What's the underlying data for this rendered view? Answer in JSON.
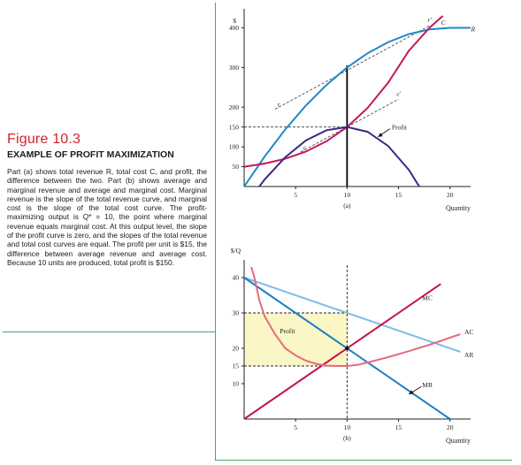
{
  "figure": {
    "label": "Figure 10.3",
    "title": "EXAMPLE OF PROFIT MAXIMIZATION",
    "body": "Part (a) shows total revenue R, total cost C, and profit, the difference between the two. Part (b) shows average and marginal revenue and average and marginal cost. Marginal revenue is the slope of the total revenue curve, and marginal cost is the slope of the total cost curve. The profit-maximizing output is Q* = 10, the point where marginal revenue equals marginal cost. At this output level, the slope of the profit curve is zero, and the slopes of the total revenue and total cost curves are equal. The profit per unit is $15, the difference between average revenue and average cost. Because 10 units are produced, total profit is $150."
  },
  "colors": {
    "revenue": "#1f87c9",
    "cost": "#c2185b",
    "profit": "#3a2a85",
    "average_revenue": "#7cbde6",
    "marginal_revenue": "#1a7fc1",
    "average_cost": "#e56b7f",
    "marginal_cost": "#c4124d",
    "profit_area": "#fbf6c5",
    "rule": "#4aa56a"
  },
  "chart_data": [
    {
      "type": "line",
      "panel_label": "(a)",
      "ylabel": "$",
      "xlabel": "Quantity",
      "xlim": [
        0,
        22
      ],
      "ylim": [
        0,
        430
      ],
      "x_ticks": [
        5,
        10,
        15,
        20
      ],
      "y_ticks": [
        50,
        100,
        150,
        200,
        300,
        400
      ],
      "series": [
        {
          "name": "R",
          "color_key": "revenue",
          "points": [
            [
              0,
              0
            ],
            [
              2,
              76
            ],
            [
              4,
              144
            ],
            [
              6,
              204
            ],
            [
              8,
              256
            ],
            [
              10,
              300
            ],
            [
              12,
              336
            ],
            [
              14,
              364
            ],
            [
              16,
              384
            ],
            [
              18,
              396
            ],
            [
              20,
              400
            ],
            [
              22,
              400
            ]
          ]
        },
        {
          "name": "C",
          "color_key": "cost",
          "points": [
            [
              0,
              50
            ],
            [
              2,
              58
            ],
            [
              4,
              70
            ],
            [
              6,
              88
            ],
            [
              8,
              114
            ],
            [
              10,
              150
            ],
            [
              12,
              198
            ],
            [
              14,
              262
            ],
            [
              16,
              342
            ],
            [
              18,
              400
            ],
            [
              19.3,
              430
            ]
          ]
        },
        {
          "name": "Profit",
          "color_key": "profit",
          "points": [
            [
              0,
              -50
            ],
            [
              2,
              18
            ],
            [
              4,
              74
            ],
            [
              6,
              116
            ],
            [
              8,
              142
            ],
            [
              10,
              150
            ],
            [
              12,
              138
            ],
            [
              14,
              102
            ],
            [
              16,
              42
            ],
            [
              17.5,
              -20
            ]
          ]
        }
      ],
      "tangent_lines": [
        {
          "label_start": "r",
          "label_end": "r′",
          "x": [
            3,
            18
          ],
          "y": [
            195,
            405
          ]
        },
        {
          "label_start": "c",
          "label_end": "c′",
          "x": [
            5.5,
            15
          ],
          "y": [
            87,
            220
          ]
        }
      ],
      "vertical_marker_x": 10,
      "reference_level_y": 150,
      "annotations": [
        {
          "text": "Profit",
          "x": 14,
          "y": 150,
          "arrow_to": [
            13,
            125
          ]
        },
        {
          "text": "C",
          "x": 19.3,
          "y": 430
        },
        {
          "text": "R",
          "x": 21.7,
          "y": 400
        }
      ]
    },
    {
      "type": "line",
      "panel_label": "(b)",
      "ylabel": "$/Q",
      "xlabel": "Quantity",
      "xlim": [
        0,
        22
      ],
      "ylim": [
        0,
        44
      ],
      "x_ticks": [
        5,
        10,
        15,
        20
      ],
      "y_ticks": [
        10,
        15,
        20,
        30,
        40
      ],
      "series": [
        {
          "name": "AR",
          "color_key": "average_revenue",
          "points": [
            [
              0,
              40
            ],
            [
              21,
              19
            ]
          ]
        },
        {
          "name": "MR",
          "color_key": "marginal_revenue",
          "points": [
            [
              0,
              40
            ],
            [
              20,
              0
            ]
          ]
        },
        {
          "name": "MC",
          "color_key": "marginal_cost",
          "points": [
            [
              0,
              0
            ],
            [
              19.1,
              38.2
            ]
          ]
        },
        {
          "name": "AC",
          "color_key": "average_cost",
          "points": [
            [
              0.7,
              43
            ],
            [
              1,
              40
            ],
            [
              1.5,
              33.3
            ],
            [
              2,
              29
            ],
            [
              3,
              24
            ],
            [
              4,
              20
            ],
            [
              5,
              18
            ],
            [
              6,
              16.5
            ],
            [
              7,
              15.6
            ],
            [
              8,
              15.1
            ],
            [
              9,
              15
            ],
            [
              10,
              15
            ],
            [
              11,
              15.3
            ],
            [
              12,
              16
            ],
            [
              14,
              17.5
            ],
            [
              16,
              19.2
            ],
            [
              18,
              21
            ],
            [
              20,
              23
            ],
            [
              21,
              24
            ]
          ]
        }
      ],
      "profit_box": {
        "x": [
          0,
          10
        ],
        "y": [
          15,
          30
        ],
        "label": "Profit"
      },
      "vertical_marker_x": 10,
      "reference_levels_y": [
        30,
        15
      ],
      "annotations": [
        {
          "text": "MC",
          "x": 17.3,
          "y": 34.4
        },
        {
          "text": "AC",
          "x": 21.4,
          "y": 24.8
        },
        {
          "text": "AR",
          "x": 21.4,
          "y": 18.2
        },
        {
          "text": "MR",
          "x": 17.3,
          "y": 9.7,
          "arrow_to": [
            16,
            7
          ]
        }
      ]
    }
  ]
}
